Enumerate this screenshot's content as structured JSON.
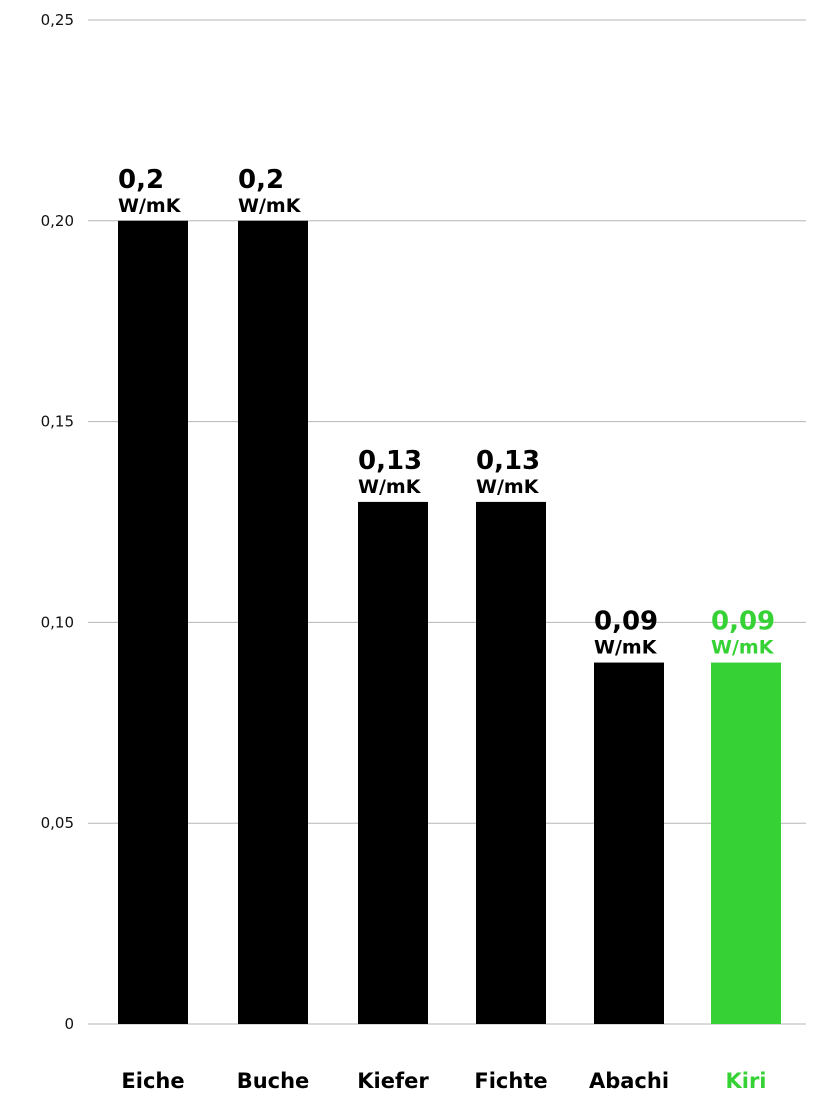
{
  "chart_data": {
    "type": "bar",
    "categories": [
      "Eiche",
      "Buche",
      "Kiefer",
      "Fichte",
      "Abachi",
      "Kiri"
    ],
    "values": [
      0.2,
      0.2,
      0.13,
      0.13,
      0.09,
      0.09
    ],
    "data_labels": [
      "0,2",
      "0,2",
      "0,13",
      "0,13",
      "0,09",
      "0,09"
    ],
    "unit": "W/mK",
    "bar_colors": [
      "#000000",
      "#000000",
      "#000000",
      "#000000",
      "#000000",
      "#35d135"
    ],
    "label_colors": [
      "#000000",
      "#000000",
      "#000000",
      "#000000",
      "#000000",
      "#35d135"
    ],
    "ylim": [
      0,
      0.25
    ],
    "yticks": [
      0,
      0.05,
      0.1,
      0.15,
      0.2,
      0.25
    ],
    "ytick_labels": [
      "0",
      "0,05",
      "0,10",
      "0,15",
      "0,20",
      "0,25"
    ],
    "grid": true,
    "title": "",
    "xlabel": "",
    "ylabel": ""
  }
}
